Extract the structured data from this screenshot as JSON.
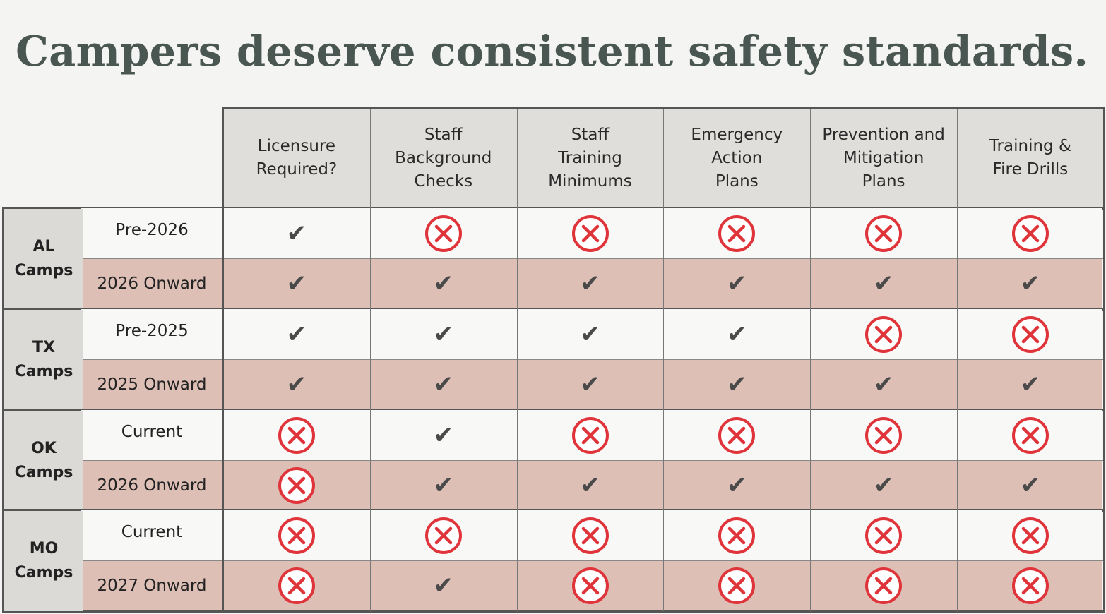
{
  "title": "Campers deserve consistent safety standards.",
  "columns": [
    "Licensure\nRequired?",
    "Staff\nBackground\nChecks",
    "Staff\nTraining\nMinimums",
    "Emergency\nAction\nPlans",
    "Prevention and\nMitigation\nPlans",
    "Training &\nFire Drills"
  ],
  "groups": [
    {
      "label": "AL\nCamps",
      "rows": [
        {
          "label": "Pre-2026",
          "values": [
            "check",
            "x",
            "x",
            "x",
            "x",
            "x"
          ]
        },
        {
          "label": "2026 Onward",
          "values": [
            "check",
            "check",
            "check",
            "check",
            "check",
            "check"
          ]
        }
      ]
    },
    {
      "label": "TX\nCamps",
      "rows": [
        {
          "label": "Pre-2025",
          "values": [
            "check",
            "check",
            "check",
            "check",
            "x",
            "x"
          ]
        },
        {
          "label": "2025 Onward",
          "values": [
            "check",
            "check",
            "check",
            "check",
            "check",
            "check"
          ]
        }
      ]
    },
    {
      "label": "OK\nCamps",
      "rows": [
        {
          "label": "Current",
          "values": [
            "x",
            "check",
            "x",
            "x",
            "x",
            "x"
          ]
        },
        {
          "label": "2026 Onward",
          "values": [
            "x",
            "check",
            "check",
            "check",
            "check",
            "check"
          ]
        }
      ]
    },
    {
      "label": "MO\nCamps",
      "rows": [
        {
          "label": "Current",
          "values": [
            "x",
            "x",
            "x",
            "x",
            "x",
            "x"
          ]
        },
        {
          "label": "2027 Onward",
          "values": [
            "x",
            "check",
            "x",
            "x",
            "x",
            "x"
          ]
        }
      ]
    }
  ],
  "icons": {
    "check": "checkmark-icon",
    "x": "circle-x-icon"
  },
  "colors": {
    "title": "#4a5652",
    "header_bg": "#e0deda",
    "row_light": "#f8f8f7",
    "row_shaded": "#ddbfb6",
    "x_red": "#e0343b",
    "check": "#4a4a4a"
  }
}
